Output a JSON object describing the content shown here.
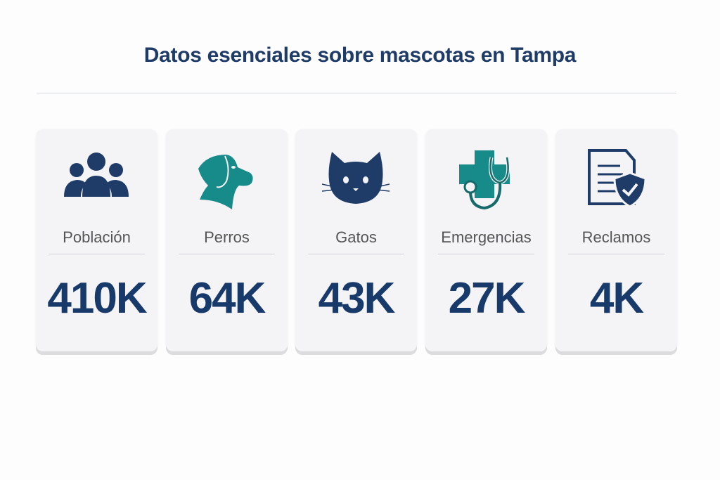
{
  "title": "Datos esenciales sobre mascotas en Tampa",
  "colors": {
    "navy": "#1f3b68",
    "teal": "#178a8a"
  },
  "cards": [
    {
      "label": "Población",
      "value": "410K",
      "icon": "people-icon"
    },
    {
      "label": "Perros",
      "value": "64K",
      "icon": "dog-icon"
    },
    {
      "label": "Gatos",
      "value": "43K",
      "icon": "cat-icon"
    },
    {
      "label": "Emergencias",
      "value": "27K",
      "icon": "medical-stethoscope-icon"
    },
    {
      "label": "Reclamos",
      "value": "4K",
      "icon": "document-shield-icon"
    }
  ]
}
